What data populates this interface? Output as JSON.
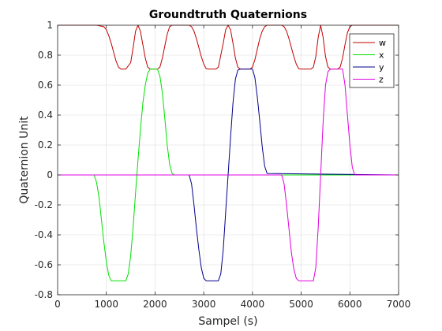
{
  "chart_data": {
    "type": "line",
    "title": "Groundtruth Quaternions",
    "xlabel": "Sampel (s)",
    "ylabel": "Quaternion Unit",
    "xlim": [
      0,
      7000
    ],
    "ylim": [
      -0.8,
      1
    ],
    "xticks": [
      0,
      1000,
      2000,
      3000,
      4000,
      5000,
      6000,
      7000
    ],
    "yticks": [
      1,
      0.8,
      0.6,
      0.4,
      0.2,
      0,
      -0.2,
      -0.4,
      -0.6,
      -0.8
    ],
    "xtick_labels": [
      "0",
      "1000",
      "2000",
      "3000",
      "4000",
      "5000",
      "6000",
      "7000"
    ],
    "ytick_labels": [
      "1",
      "0.8",
      "0.6",
      "0.4",
      "0.2",
      "0",
      "-0.2",
      "-0.4",
      "-0.6",
      "-0.8"
    ],
    "grid": true,
    "legend_position": "top-right",
    "series": [
      {
        "name": "w",
        "color": "#c00000",
        "x": [
          0,
          800,
          950,
          1000,
          1050,
          1100,
          1150,
          1200,
          1250,
          1300,
          1350,
          1400,
          1500,
          1550,
          1600,
          1650,
          1700,
          1750,
          1800,
          1850,
          1900,
          1950,
          2000,
          2050,
          2100,
          2150,
          2200,
          2250,
          2300,
          2350,
          2400,
          2700,
          2750,
          2800,
          2850,
          2900,
          2950,
          3000,
          3050,
          3100,
          3150,
          3200,
          3250,
          3300,
          3400,
          3450,
          3500,
          3550,
          3600,
          3650,
          3700,
          3750,
          3800,
          3850,
          3900,
          3950,
          4000,
          4050,
          4100,
          4150,
          4200,
          4250,
          4300,
          4600,
          4650,
          4700,
          4750,
          4800,
          4850,
          4900,
          4950,
          5000,
          5050,
          5100,
          5150,
          5200,
          5250,
          5300,
          5350,
          5400,
          5450,
          5500,
          5550,
          5600,
          5650,
          5700,
          5750,
          5800,
          5850,
          5900,
          5950,
          6000,
          6050,
          7000
        ],
        "values": [
          1,
          1,
          0.99,
          0.97,
          0.93,
          0.88,
          0.82,
          0.76,
          0.72,
          0.707,
          0.707,
          0.707,
          0.75,
          0.85,
          0.96,
          1,
          0.96,
          0.87,
          0.78,
          0.72,
          0.707,
          0.707,
          0.707,
          0.707,
          0.72,
          0.78,
          0.86,
          0.94,
          0.99,
          1,
          1,
          1,
          0.99,
          0.96,
          0.91,
          0.85,
          0.79,
          0.74,
          0.71,
          0.707,
          0.707,
          0.707,
          0.707,
          0.72,
          0.88,
          0.97,
          1,
          0.97,
          0.88,
          0.78,
          0.72,
          0.707,
          0.707,
          0.707,
          0.707,
          0.707,
          0.72,
          0.77,
          0.84,
          0.91,
          0.96,
          0.99,
          1,
          1,
          0.99,
          0.96,
          0.91,
          0.85,
          0.79,
          0.74,
          0.71,
          0.707,
          0.707,
          0.707,
          0.707,
          0.707,
          0.72,
          0.79,
          0.92,
          1,
          0.92,
          0.79,
          0.72,
          0.707,
          0.707,
          0.707,
          0.707,
          0.72,
          0.78,
          0.87,
          0.95,
          0.99,
          1,
          1
        ]
      },
      {
        "name": "x",
        "color": "#00e000",
        "x": [
          0,
          750,
          800,
          850,
          900,
          950,
          1000,
          1050,
          1100,
          1150,
          1400,
          1450,
          1500,
          1550,
          1600,
          1650,
          1700,
          1750,
          1800,
          1850,
          1900,
          1950,
          2050,
          2100,
          2150,
          2200,
          2250,
          2300,
          2350,
          2400,
          7000
        ],
        "values": [
          0,
          0,
          -0.05,
          -0.15,
          -0.3,
          -0.45,
          -0.58,
          -0.67,
          -0.707,
          -0.707,
          -0.707,
          -0.66,
          -0.54,
          -0.35,
          -0.12,
          0.1,
          0.3,
          0.48,
          0.6,
          0.68,
          0.707,
          0.707,
          0.707,
          0.66,
          0.55,
          0.38,
          0.2,
          0.07,
          0.01,
          0,
          0
        ]
      },
      {
        "name": "y",
        "color": "#00008b",
        "x": [
          0,
          2700,
          2750,
          2800,
          2850,
          2900,
          2950,
          3000,
          3050,
          3300,
          3350,
          3400,
          3450,
          3500,
          3550,
          3600,
          3650,
          3700,
          3750,
          4000,
          4050,
          4100,
          4150,
          4200,
          4250,
          4300,
          7000
        ],
        "values": [
          0,
          0,
          -0.06,
          -0.2,
          -0.36,
          -0.5,
          -0.62,
          -0.69,
          -0.707,
          -0.707,
          -0.66,
          -0.5,
          -0.25,
          0,
          0.25,
          0.48,
          0.64,
          0.7,
          0.707,
          0.707,
          0.65,
          0.52,
          0.36,
          0.19,
          0.06,
          0.01,
          0
        ]
      },
      {
        "name": "z",
        "color": "#e000e0",
        "x": [
          0,
          4600,
          4650,
          4700,
          4750,
          4800,
          4850,
          4900,
          4950,
          5250,
          5300,
          5350,
          5400,
          5450,
          5500,
          5550,
          5600,
          5650,
          5850,
          5900,
          5950,
          6000,
          6050,
          6100,
          7000
        ],
        "values": [
          0,
          0,
          -0.06,
          -0.2,
          -0.36,
          -0.52,
          -0.63,
          -0.69,
          -0.707,
          -0.707,
          -0.62,
          -0.35,
          0,
          0.35,
          0.6,
          0.69,
          0.707,
          0.707,
          0.707,
          0.6,
          0.4,
          0.2,
          0.05,
          0,
          0
        ]
      }
    ]
  }
}
